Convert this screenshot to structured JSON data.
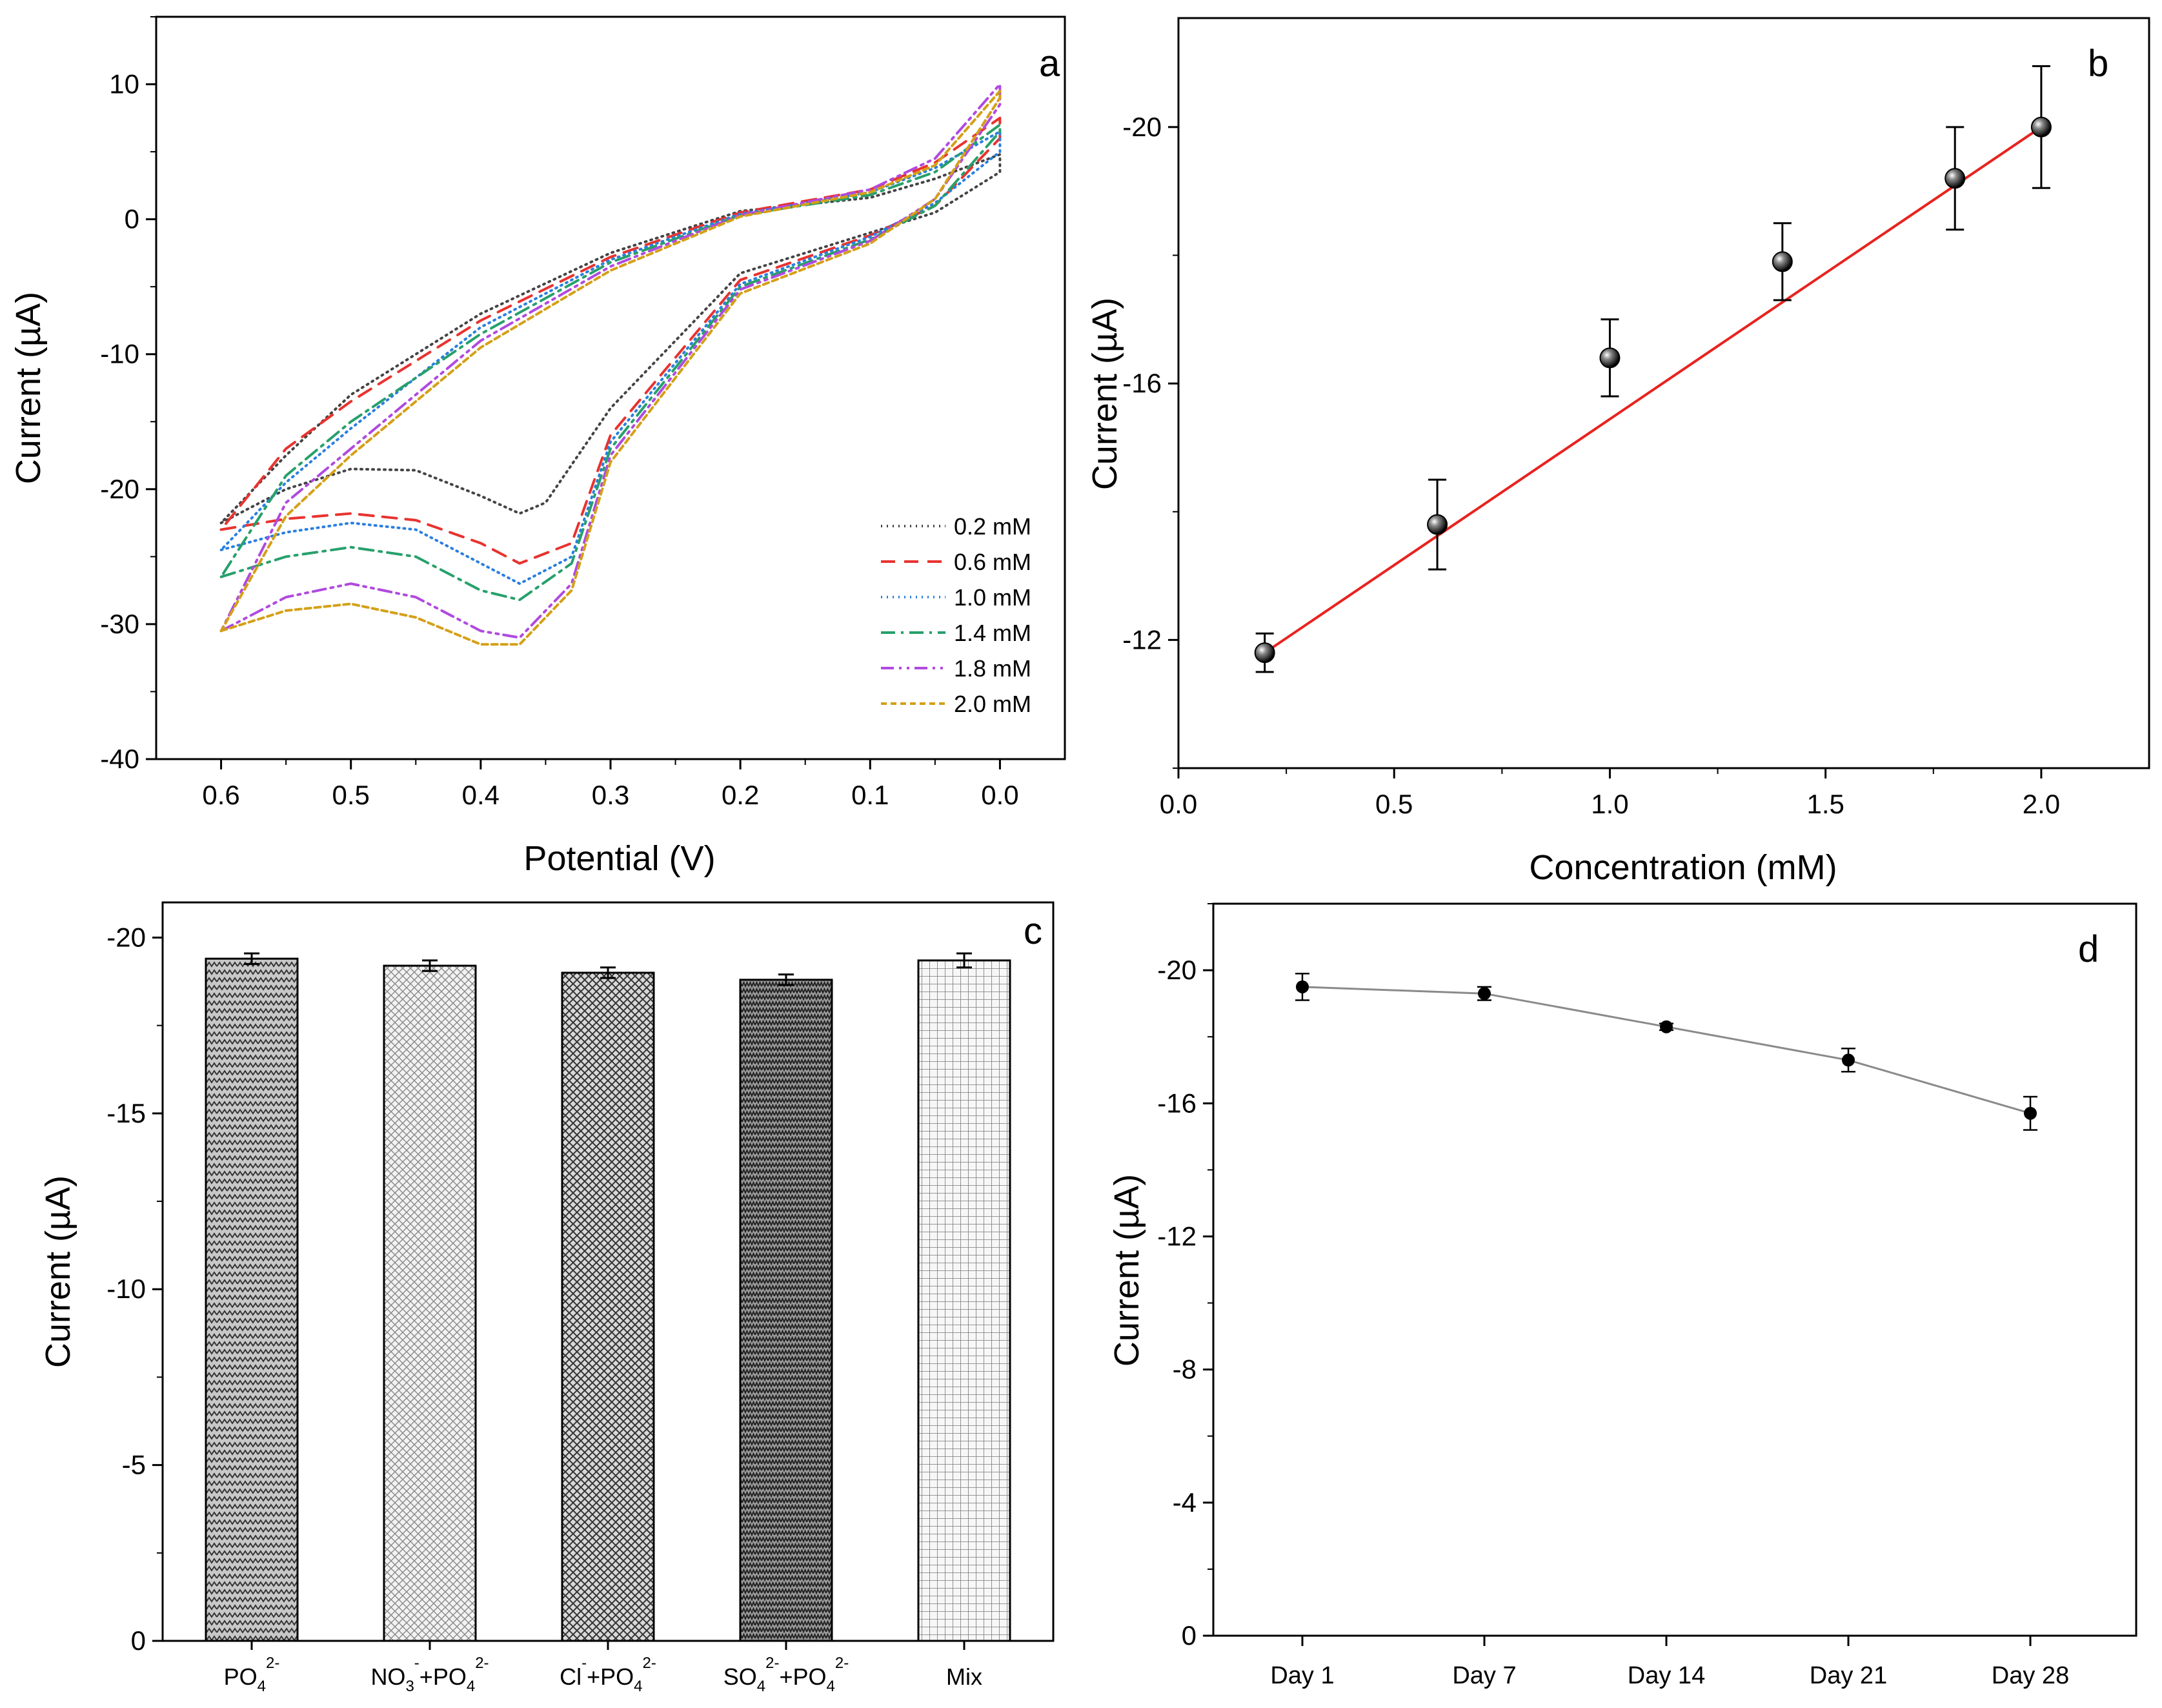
{
  "chart_data": [
    {
      "panel": "a",
      "type": "line",
      "xlabel": "Potential (V)",
      "ylabel": "Current (µA)",
      "xlim": [
        0.65,
        -0.05
      ],
      "ylim": [
        -40,
        15
      ],
      "xticks": [
        "0.6",
        "0.5",
        "0.4",
        "0.3",
        "0.2",
        "0.1",
        "0.0"
      ],
      "yticks": [
        "10",
        "0",
        "-10",
        "-20",
        "-30",
        "-40"
      ],
      "legend_position": "bottom-right",
      "series": [
        {
          "name": "0.2 mM",
          "color": "#444444",
          "style": "dotted",
          "x": [
            0.6,
            0.55,
            0.5,
            0.45,
            0.4,
            0.37,
            0.35,
            0.3,
            0.2,
            0.1,
            0.05,
            0.0,
            0.0,
            0.05,
            0.1,
            0.2,
            0.3,
            0.4,
            0.5,
            0.55,
            0.6
          ],
          "y": [
            -22.5,
            -20.0,
            -18.5,
            -18.6,
            -20.5,
            -21.8,
            -21.0,
            -14.0,
            -4.0,
            -1.0,
            0.5,
            3.5,
            4.8,
            3.0,
            1.6,
            0.6,
            -2.5,
            -7.0,
            -13.0,
            -17.5,
            -22.5
          ]
        },
        {
          "name": "0.6 mM",
          "color": "#e8332f",
          "style": "dashed",
          "x": [
            0.6,
            0.55,
            0.5,
            0.45,
            0.4,
            0.37,
            0.33,
            0.3,
            0.2,
            0.1,
            0.05,
            0.0,
            0.0,
            0.05,
            0.1,
            0.2,
            0.3,
            0.4,
            0.5,
            0.55,
            0.6
          ],
          "y": [
            -23.0,
            -22.2,
            -21.8,
            -22.3,
            -24.0,
            -25.5,
            -24.0,
            -16.0,
            -4.5,
            -1.2,
            1.0,
            6.0,
            7.5,
            4.2,
            2.2,
            0.5,
            -2.8,
            -7.5,
            -13.5,
            -17.0,
            -23.0
          ]
        },
        {
          "name": "1.0 mM",
          "color": "#2a7fe0",
          "style": "dotted",
          "x": [
            0.6,
            0.55,
            0.5,
            0.45,
            0.4,
            0.37,
            0.33,
            0.3,
            0.2,
            0.1,
            0.05,
            0.0,
            0.0,
            0.05,
            0.1,
            0.2,
            0.3,
            0.4,
            0.5,
            0.55,
            0.6
          ],
          "y": [
            -24.5,
            -23.2,
            -22.5,
            -23.0,
            -25.5,
            -27.0,
            -25.0,
            -16.5,
            -4.8,
            -1.3,
            1.2,
            5.0,
            6.5,
            3.8,
            2.0,
            0.4,
            -3.0,
            -8.0,
            -15.5,
            -19.5,
            -24.5
          ]
        },
        {
          "name": "1.4 mM",
          "color": "#27a06b",
          "style": "dashdot",
          "x": [
            0.6,
            0.55,
            0.5,
            0.45,
            0.4,
            0.37,
            0.33,
            0.3,
            0.2,
            0.1,
            0.05,
            0.0,
            0.0,
            0.05,
            0.1,
            0.2,
            0.3,
            0.4,
            0.5,
            0.55,
            0.6
          ],
          "y": [
            -26.5,
            -25.0,
            -24.3,
            -25.0,
            -27.5,
            -28.2,
            -25.5,
            -17.0,
            -5.0,
            -1.5,
            1.0,
            6.5,
            7.0,
            3.5,
            1.8,
            0.3,
            -3.2,
            -8.5,
            -15.0,
            -19.0,
            -26.5
          ]
        },
        {
          "name": "1.8 mM",
          "color": "#b04ae0",
          "style": "dashdotdot",
          "x": [
            0.6,
            0.55,
            0.5,
            0.45,
            0.4,
            0.37,
            0.33,
            0.3,
            0.2,
            0.1,
            0.05,
            0.0,
            0.0,
            0.05,
            0.1,
            0.2,
            0.3,
            0.4,
            0.5,
            0.55,
            0.6
          ],
          "y": [
            -30.5,
            -28.0,
            -27.0,
            -28.0,
            -30.5,
            -31.0,
            -27.0,
            -17.5,
            -5.2,
            -1.6,
            1.5,
            8.5,
            10.0,
            4.5,
            2.2,
            0.3,
            -3.5,
            -9.0,
            -17.0,
            -21.0,
            -30.5
          ]
        },
        {
          "name": "2.0 mM",
          "color": "#d4a017",
          "style": "dashed-short",
          "x": [
            0.6,
            0.55,
            0.5,
            0.45,
            0.4,
            0.37,
            0.33,
            0.3,
            0.2,
            0.1,
            0.05,
            0.0,
            0.0,
            0.05,
            0.1,
            0.2,
            0.3,
            0.4,
            0.5,
            0.55,
            0.6
          ],
          "y": [
            -30.5,
            -29.0,
            -28.5,
            -29.5,
            -31.5,
            -31.5,
            -27.5,
            -18.0,
            -5.5,
            -1.8,
            1.5,
            9.0,
            9.5,
            4.0,
            2.0,
            0.2,
            -3.8,
            -9.5,
            -17.5,
            -22.0,
            -30.5
          ]
        }
      ]
    },
    {
      "panel": "b",
      "type": "scatter",
      "xlabel": "Concentration (mM)",
      "ylabel": "Current (µA)",
      "xlim": [
        0.0,
        2.25
      ],
      "ylim": [
        -10,
        -21.7
      ],
      "xticks": [
        "0.0",
        "0.5",
        "1.0",
        "1.5",
        "2.0"
      ],
      "yticks": [
        "-12",
        "-16",
        "-20"
      ],
      "x": [
        0.2,
        0.6,
        1.0,
        1.4,
        1.8,
        2.0
      ],
      "y": [
        -11.8,
        -13.8,
        -16.4,
        -17.9,
        -19.2,
        -20.0
      ],
      "error": [
        0.3,
        0.7,
        0.6,
        0.6,
        0.8,
        0.95
      ],
      "fit": {
        "x": [
          0.2,
          2.0
        ],
        "y": [
          -11.8,
          -20.0
        ],
        "color": "#e8231f"
      }
    },
    {
      "panel": "c",
      "type": "bar",
      "ylabel": "Current (µA)",
      "ylim": [
        0,
        -21
      ],
      "yticks": [
        "0",
        "-5",
        "-10",
        "-15",
        "-20"
      ],
      "categories": [
        {
          "main": "PO",
          "sub": "4",
          "sup": "2-",
          "rest": ""
        },
        {
          "main": "NO",
          "sub": "3",
          "sup": "-",
          "rest": "+PO",
          "sub2": "4",
          "sup2": "2-"
        },
        {
          "main": "Cl",
          "sub": "",
          "sup": "-",
          "rest": "+PO",
          "sub2": "4",
          "sup2": "2-"
        },
        {
          "main": "SO",
          "sub": "4",
          "sup": "2-",
          "rest": "+PO",
          "sub2": "4",
          "sup2": "2-"
        },
        {
          "main": "Mix",
          "sub": "",
          "sup": "",
          "rest": ""
        }
      ],
      "values": [
        -19.4,
        -19.2,
        -19.0,
        -18.8,
        -19.35
      ],
      "error": [
        0.15,
        0.15,
        0.15,
        0.15,
        0.2
      ],
      "patterns": [
        "zigzag",
        "crosshatch-light",
        "diagonal-cross",
        "dense-zigzag",
        "grid"
      ]
    },
    {
      "panel": "d",
      "type": "line",
      "ylabel": "Current (µA)",
      "ylim": [
        0,
        -22
      ],
      "yticks": [
        "0",
        "-4",
        "-8",
        "-12",
        "-16",
        "-20"
      ],
      "categories": [
        "Day 1",
        "Day 7",
        "Day 14",
        "Day 21",
        "Day 28"
      ],
      "values": [
        -19.5,
        -19.3,
        -18.3,
        -17.3,
        -15.7
      ],
      "error": [
        0.4,
        0.2,
        0.1,
        0.35,
        0.5
      ]
    }
  ],
  "labels": {
    "a": "a",
    "b": "b",
    "c": "c",
    "d": "d"
  }
}
